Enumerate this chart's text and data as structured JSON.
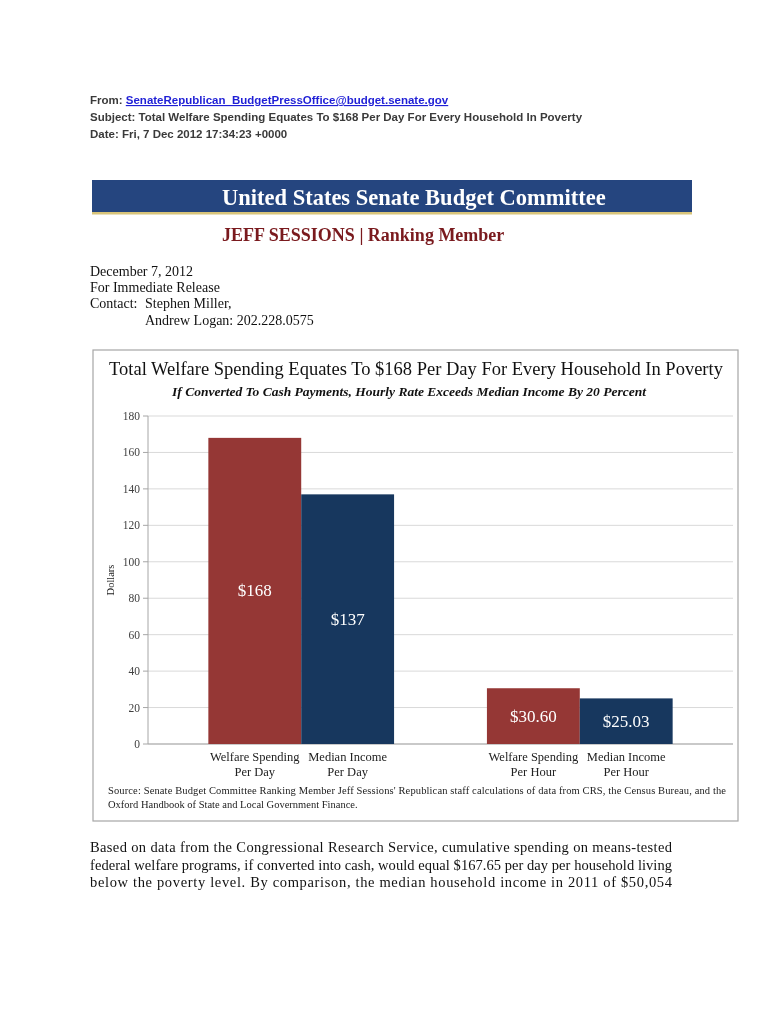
{
  "chart_data": {
    "type": "bar",
    "title": "Total Welfare Spending Equates To $168 Per Day For Every Household In Poverty",
    "subtitle": "If Converted To Cash Payments, Hourly Rate Exceeds Median Income By 20 Percent",
    "ylabel": "Dollars",
    "categories": [
      "Welfare Spending Per Day",
      "Median Income Per Day",
      null,
      "Welfare Spending Per Hour",
      "Median Income Per Hour"
    ],
    "values": [
      168,
      137,
      null,
      30.6,
      25.03
    ],
    "colors": [
      "#953735",
      "#17375e",
      null,
      "#953735",
      "#17375e"
    ],
    "value_labels": [
      "$168",
      "$137",
      null,
      "$30.60",
      "$25.03"
    ],
    "ylim": [
      0,
      180
    ],
    "yticks": [
      0,
      20,
      40,
      60,
      80,
      100,
      120,
      140,
      160,
      180
    ],
    "grid": "y",
    "annotations": [
      "From: SenateRepublican_BudgetPressOffice@budget.senate.gov",
      "Subject: Total Welfare Spending Equates To $168 Per Day For Every Household In Poverty",
      "Date: Fri, 7 Dec 2012 17:34:23 +0000",
      "United States Senate Budget Committee",
      "JEFF SESSIONS | Ranking Member",
      "December 7, 2012",
      "For Immediate Release",
      "Contact: Stephen Miller,",
      "Andrew Logan: 202.228.0575",
      "Source: Senate Budget Committee Ranking Member Jeff Sessions' Republican staff calculations of data from CRS, the Census Bureau, and the Oxford Handbook of State and Local Government Finance.",
      "Based on data from the Congressional Research Service, cumulative spending on means-tested federal welfare programs, if converted into cash, would equal $167.65 per day per household living below the poverty level. By comparison, the median household income in 2011 of $50,054"
    ]
  }
}
